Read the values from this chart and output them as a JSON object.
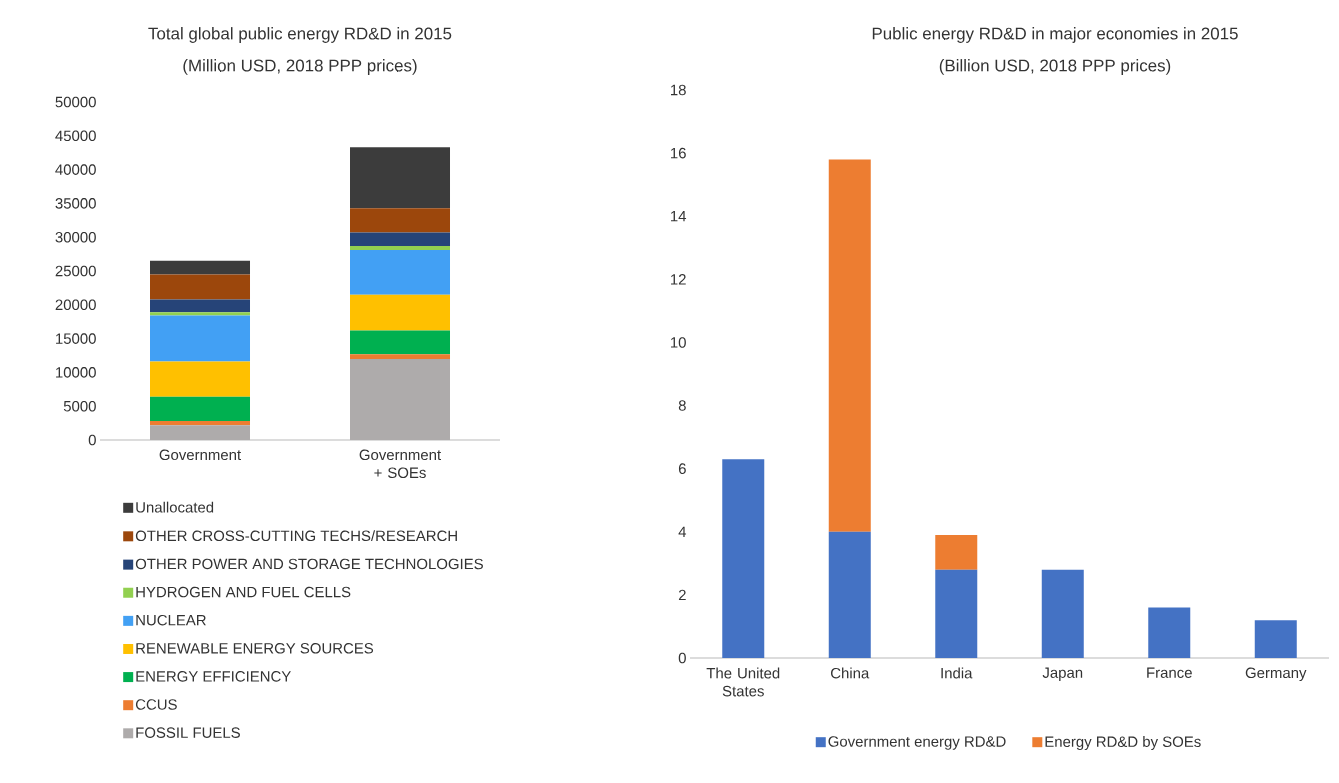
{
  "chart_data": [
    {
      "type": "bar",
      "title": "Total global public energy RD&D in 2015",
      "subtitle": "(Million USD, 2018 PPP prices)",
      "categories": [
        "Government",
        "Government + SOEs"
      ],
      "stacked": true,
      "ylim": [
        0,
        50000
      ],
      "yticks": [
        0,
        5000,
        10000,
        15000,
        20000,
        25000,
        30000,
        35000,
        40000,
        45000,
        50000
      ],
      "legend": "bottom",
      "series": [
        {
          "name": "FOSSIL FUELS",
          "color": "#aeabab",
          "values": [
            2200,
            12000
          ]
        },
        {
          "name": "CCUS",
          "color": "#ed7d31",
          "values": [
            600,
            700
          ]
        },
        {
          "name": "ENERGY EFFICIENCY",
          "color": "#00b050",
          "values": [
            3600,
            3500
          ]
        },
        {
          "name": "RENEWABLE ENERGY SOURCES",
          "color": "#ffc000",
          "values": [
            5200,
            5300
          ]
        },
        {
          "name": "NUCLEAR",
          "color": "#42a0f4",
          "values": [
            6800,
            6600
          ]
        },
        {
          "name": "HYDROGEN AND FUEL CELLS",
          "color": "#92d050",
          "values": [
            500,
            600
          ]
        },
        {
          "name": "OTHER POWER AND STORAGE TECHNOLOGIES",
          "color": "#264478",
          "values": [
            1900,
            2000
          ]
        },
        {
          "name": "OTHER CROSS-CUTTING TECHS/RESEARCH",
          "color": "#9c470c",
          "values": [
            3700,
            3600
          ]
        },
        {
          "name": "Unallocated",
          "color": "#3c3c3c",
          "values": [
            2000,
            9000
          ]
        }
      ]
    },
    {
      "type": "bar",
      "title": "Public energy RD&D in major economies in 2015",
      "subtitle": "(Billion USD, 2018 PPP prices)",
      "categories": [
        "The United States",
        "China",
        "India",
        "Japan",
        "France",
        "Germany"
      ],
      "stacked": true,
      "ylim": [
        0,
        18
      ],
      "yticks": [
        0,
        2,
        4,
        6,
        8,
        10,
        12,
        14,
        16,
        18
      ],
      "legend": "bottom",
      "series": [
        {
          "name": "Government energy RD&D",
          "color": "#4472c4",
          "values": [
            6.3,
            4.0,
            2.8,
            2.8,
            1.6,
            1.2
          ]
        },
        {
          "name": "Energy RD&D by SOEs",
          "color": "#ed7d31",
          "values": [
            null,
            11.8,
            1.1,
            null,
            null,
            null
          ]
        }
      ]
    }
  ]
}
